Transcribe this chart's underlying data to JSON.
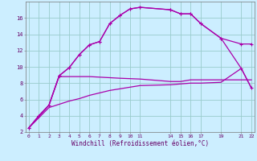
{
  "title": "",
  "xlabel": "Windchill (Refroidissement éolien,°C)",
  "bg_color": "#cceeff",
  "grid_color": "#99cccc",
  "line_color": "#aa00aa",
  "line1_x": [
    0,
    1,
    2,
    3,
    4,
    5,
    6,
    7,
    8,
    9,
    10,
    11,
    14,
    15,
    16,
    17,
    19,
    21,
    22
  ],
  "line1_y": [
    2.5,
    4.0,
    5.3,
    8.9,
    9.9,
    11.5,
    12.7,
    13.1,
    15.3,
    16.3,
    17.1,
    17.3,
    17.0,
    16.5,
    16.5,
    15.3,
    13.5,
    12.8,
    12.8
  ],
  "line2_x": [
    0,
    1,
    2,
    3,
    4,
    5,
    6,
    7,
    8,
    9,
    10,
    11,
    14,
    15,
    16,
    17,
    19,
    21,
    22
  ],
  "line2_y": [
    2.5,
    4.0,
    5.3,
    8.9,
    9.9,
    11.5,
    12.7,
    13.1,
    15.3,
    16.3,
    17.1,
    17.3,
    17.0,
    16.5,
    16.5,
    15.3,
    13.5,
    9.8,
    7.4
  ],
  "line3_x": [
    0,
    2,
    3,
    6,
    9,
    11,
    14,
    15,
    16,
    17,
    19,
    21,
    22
  ],
  "line3_y": [
    2.5,
    5.3,
    8.8,
    8.8,
    8.6,
    8.5,
    8.2,
    8.2,
    8.4,
    8.4,
    8.4,
    8.4,
    8.4
  ],
  "line4_x": [
    0,
    2,
    3,
    4,
    5,
    6,
    7,
    8,
    9,
    10,
    11,
    14,
    15,
    16,
    17,
    19,
    21,
    22
  ],
  "line4_y": [
    2.5,
    5.0,
    5.4,
    5.8,
    6.1,
    6.5,
    6.8,
    7.1,
    7.3,
    7.5,
    7.7,
    7.8,
    7.9,
    8.0,
    8.0,
    8.1,
    9.8,
    7.4
  ],
  "ylim": [
    2,
    18
  ],
  "xlim": [
    -0.3,
    22.3
  ],
  "yticks": [
    2,
    4,
    6,
    8,
    10,
    12,
    14,
    16
  ],
  "xticks": [
    0,
    1,
    2,
    3,
    4,
    5,
    6,
    7,
    8,
    9,
    10,
    11,
    14,
    15,
    16,
    17,
    19,
    21,
    22
  ]
}
